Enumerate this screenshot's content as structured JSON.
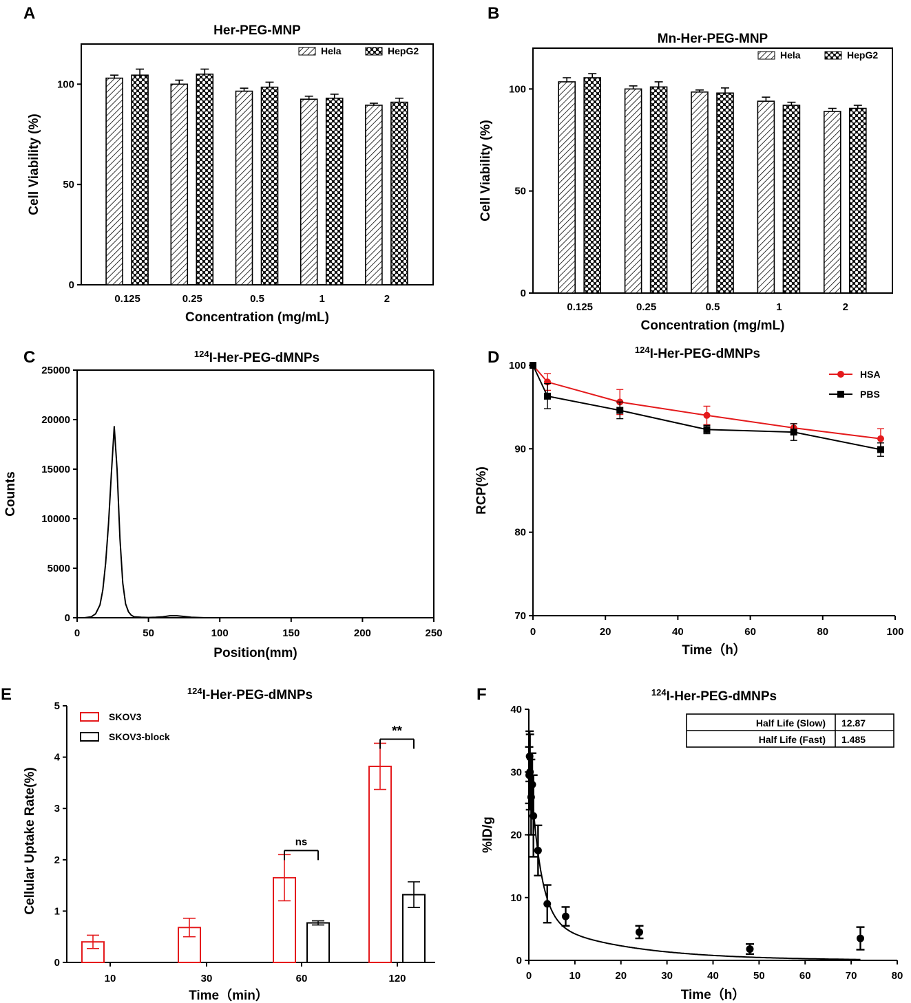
{
  "chart_data": [
    {
      "panel": "A",
      "type": "bar",
      "title": "Her-PEG-MNP",
      "xlabel": "Concentration (mg/mL)",
      "ylabel": "Cell Viability (%)",
      "categories": [
        "0.125",
        "0.25",
        "0.5",
        "1",
        "2"
      ],
      "ylim": [
        0,
        120
      ],
      "yticks": [
        "0",
        "50",
        "100"
      ],
      "series": [
        {
          "name": "Hela",
          "values": [
            103,
            100,
            96.5,
            92.5,
            89.5
          ],
          "errors": [
            1.5,
            2,
            1.5,
            1.5,
            1
          ],
          "pattern": "hatch"
        },
        {
          "name": "HepG2",
          "values": [
            104.5,
            105,
            98.5,
            93,
            91
          ],
          "errors": [
            3,
            2.5,
            2.5,
            2,
            2
          ],
          "pattern": "cross"
        }
      ]
    },
    {
      "panel": "B",
      "type": "bar",
      "title": "Mn-Her-PEG-MNP",
      "xlabel": "Concentration (mg/mL)",
      "ylabel": "Cell Viability (%)",
      "categories": [
        "0.125",
        "0.25",
        "0.5",
        "1",
        "2"
      ],
      "ylim": [
        0,
        120
      ],
      "yticks": [
        "0",
        "50",
        "100"
      ],
      "series": [
        {
          "name": "Hela",
          "values": [
            103.5,
            100,
            98.5,
            94,
            89
          ],
          "errors": [
            2,
            1.5,
            1,
            2,
            1.5
          ],
          "pattern": "hatch"
        },
        {
          "name": "HepG2",
          "values": [
            105.5,
            101,
            98,
            92,
            90.5
          ],
          "errors": [
            2,
            2.5,
            2.5,
            1.5,
            1.5
          ],
          "pattern": "cross"
        }
      ]
    },
    {
      "panel": "C",
      "type": "line",
      "title": "Her-PEG-dMNPs",
      "title_sup": "124",
      "prefix": "I-",
      "xlabel": "Position(mm)",
      "ylabel": "Counts",
      "xlim": [
        0,
        250
      ],
      "ylim": [
        0,
        25000
      ],
      "xticks": [
        "0",
        "50",
        "100",
        "150",
        "200",
        "250"
      ],
      "yticks": [
        "0",
        "5000",
        "10000",
        "15000",
        "20000",
        "25000"
      ],
      "x": [
        0,
        5,
        10,
        13,
        16,
        18,
        20,
        22,
        24,
        26,
        28,
        30,
        32,
        34,
        36,
        38,
        40,
        45,
        50,
        55,
        60,
        65,
        70,
        75,
        80,
        90,
        100,
        150,
        200,
        250
      ],
      "y": [
        0,
        0,
        100,
        400,
        1300,
        2800,
        5500,
        9500,
        14500,
        19300,
        15000,
        8000,
        3500,
        1400,
        600,
        250,
        100,
        50,
        30,
        50,
        100,
        200,
        200,
        130,
        50,
        0,
        0,
        0,
        0,
        0
      ]
    },
    {
      "panel": "D",
      "type": "line",
      "title": "Her-PEG-dMNPs",
      "title_sup": "124",
      "prefix": "I-",
      "xlabel": "Time（h）",
      "ylabel": "RCP(%)",
      "xlim": [
        0,
        100
      ],
      "ylim": [
        70,
        100
      ],
      "xticks": [
        "0",
        "20",
        "40",
        "60",
        "80",
        "100"
      ],
      "yticks": [
        "70",
        "80",
        "90",
        "100"
      ],
      "series": [
        {
          "name": "HSA",
          "color": "#e41a1c",
          "marker": "circle",
          "x": [
            0,
            4,
            24,
            48,
            72,
            96
          ],
          "y": [
            100,
            98,
            95.6,
            94,
            92.5,
            91.2
          ],
          "errors": [
            0,
            1,
            1.5,
            1.1,
            0.5,
            1.2
          ]
        },
        {
          "name": "PBS",
          "color": "#000000",
          "marker": "square",
          "x": [
            0,
            4,
            24,
            48,
            72,
            96
          ],
          "y": [
            100,
            96.3,
            94.6,
            92.3,
            92,
            89.9
          ],
          "errors": [
            0,
            1.5,
            1,
            0.5,
            1,
            0.8
          ]
        }
      ]
    },
    {
      "panel": "E",
      "type": "bar",
      "title": "Her-PEG-dMNPs",
      "title_sup": "124",
      "prefix": "I-",
      "xlabel": "Time（min）",
      "ylabel": "Cellular Uptake Rate(%)",
      "categories": [
        "10",
        "30",
        "60",
        "120"
      ],
      "ylim": [
        0,
        5
      ],
      "yticks": [
        "0",
        "1",
        "2",
        "3",
        "4",
        "5"
      ],
      "series": [
        {
          "name": "SKOV3",
          "color": "#e41a1c",
          "values": [
            0.4,
            0.68,
            1.65,
            3.82
          ],
          "errors": [
            0.13,
            0.18,
            0.45,
            0.45
          ]
        },
        {
          "name": "SKOV3-block",
          "color": "#000000",
          "values": [
            null,
            null,
            0.77,
            1.32
          ],
          "errors": [
            null,
            null,
            0.04,
            0.25
          ]
        }
      ],
      "annotations": [
        {
          "category": "60",
          "label": "ns"
        },
        {
          "category": "120",
          "label": "**"
        }
      ]
    },
    {
      "panel": "F",
      "type": "scatter",
      "title": "Her-PEG-dMNPs",
      "title_sup": "124",
      "prefix": "I-",
      "xlabel": "Time（h）",
      "ylabel": "%ID/g",
      "xlim": [
        0,
        80
      ],
      "ylim": [
        0,
        40
      ],
      "xticks": [
        "0",
        "10",
        "20",
        "30",
        "40",
        "50",
        "60",
        "70",
        "80"
      ],
      "yticks": [
        "0",
        "10",
        "20",
        "30",
        "40"
      ],
      "points": {
        "x": [
          0.08,
          0.17,
          0.25,
          0.5,
          0.75,
          1,
          2,
          4,
          8,
          24,
          48,
          72
        ],
        "y": [
          29.5,
          32.5,
          30,
          26,
          28,
          23,
          17.5,
          9,
          7,
          4.5,
          1.8,
          3.5
        ],
        "errors": [
          4.5,
          4,
          6,
          6,
          5,
          6.5,
          4,
          3,
          1.5,
          1,
          0.8,
          1.8
        ]
      },
      "fit": {
        "a": 28,
        "fast_rate": 0.467,
        "b": 6.8,
        "slow_rate": 0.0539
      },
      "table": [
        {
          "label": "Half Life (Slow)",
          "value": "12.87"
        },
        {
          "label": "Half Life (Fast)",
          "value": "1.485"
        }
      ]
    }
  ]
}
